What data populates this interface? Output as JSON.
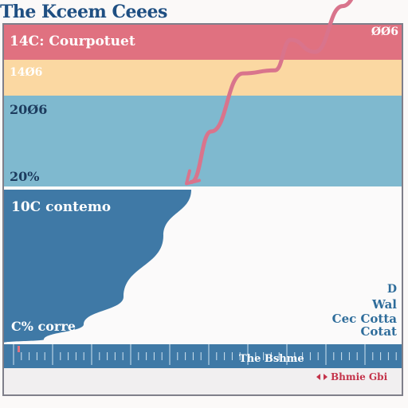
{
  "title": "The Kceem Ceees",
  "bands": [
    {
      "name": "red",
      "color": "#e07180",
      "label": "14C: Courpotuet",
      "right_label": "ØØ6"
    },
    {
      "name": "yellow",
      "color": "#fbd8a2",
      "label": "14Ø6"
    },
    {
      "name": "blue",
      "color": "#7fb9cf",
      "label_top": "20Ø6",
      "label_bottom": "20%"
    }
  ],
  "area_labels": {
    "top": "10C contemo",
    "bottom": "C% corre"
  },
  "side_text": [
    "D",
    "Wal",
    "Cec Cotta",
    "Cotat"
  ],
  "axis": {
    "label": "The Bshme",
    "color": "#3f79a6"
  },
  "legend": {
    "label": "Bhmie Gbi",
    "color": "#c4334a"
  },
  "chart_data": {
    "type": "area",
    "series": [
      {
        "kind": "area",
        "color": "#3f79a6",
        "x": [
          0,
          10,
          20,
          30,
          40,
          47
        ],
        "y": [
          0,
          2,
          12,
          30,
          70,
          100
        ]
      },
      {
        "kind": "line",
        "color": "#d9748c",
        "x": [
          47,
          52,
          60,
          68,
          72,
          78,
          85,
          94
        ],
        "y": [
          105,
          138,
          176,
          178,
          198,
          190,
          220,
          265
        ]
      }
    ],
    "grid": false
  }
}
